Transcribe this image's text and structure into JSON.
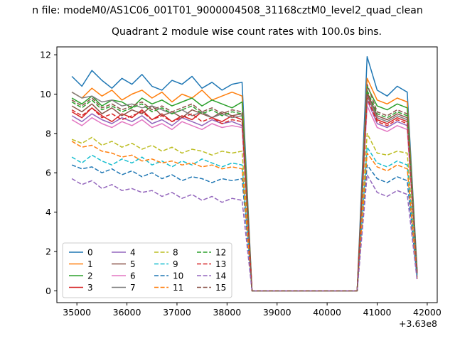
{
  "figure": {
    "suptitle": "n file: modeM0/AS1C06_001T01_9000004508_31168cztM0_level2_quad_clean",
    "title": "Quadrant 2 module wise count rates with 100.0s bins."
  },
  "chart_data": {
    "type": "line",
    "title": "Quadrant 2 module wise count rates with 100.0s bins.",
    "xlabel": "",
    "ylabel": "",
    "xlim": [
      34600,
      42200
    ],
    "ylim": [
      -0.6,
      12.4
    ],
    "x_ticks": [
      35000,
      36000,
      37000,
      38000,
      39000,
      40000,
      41000,
      42000
    ],
    "y_ticks": [
      0,
      2,
      4,
      6,
      8,
      10,
      12
    ],
    "x_offset": "+3.63e8",
    "grid": false,
    "legend_position": "lower left",
    "legend_columns": 4,
    "x": [
      34900,
      35100,
      35300,
      35500,
      35700,
      35900,
      36100,
      36300,
      36500,
      36700,
      36900,
      37100,
      37300,
      37500,
      37700,
      37900,
      38100,
      38300,
      38500,
      38700,
      38900,
      39100,
      39300,
      39500,
      39700,
      39900,
      40100,
      40300,
      40500,
      40600,
      40800,
      41000,
      41200,
      41400,
      41600,
      41800
    ],
    "series": [
      {
        "name": "0",
        "color": "#1f77b4",
        "dash": "solid",
        "values": [
          10.9,
          10.4,
          11.2,
          10.7,
          10.3,
          10.8,
          10.5,
          11.0,
          10.4,
          10.2,
          10.7,
          10.5,
          10.9,
          10.3,
          10.6,
          10.2,
          10.5,
          10.6,
          0,
          0,
          0,
          0,
          0,
          0,
          0,
          0,
          0,
          0,
          0,
          0,
          11.9,
          10.2,
          9.9,
          10.4,
          10.1,
          1.0
        ]
      },
      {
        "name": "1",
        "color": "#ff7f0e",
        "dash": "solid",
        "values": [
          10.1,
          9.8,
          10.3,
          9.9,
          10.2,
          9.7,
          10.0,
          10.2,
          9.8,
          10.1,
          9.6,
          10.0,
          9.8,
          10.2,
          9.7,
          9.9,
          10.1,
          9.9,
          0,
          0,
          0,
          0,
          0,
          0,
          0,
          0,
          0,
          0,
          0,
          0,
          10.8,
          9.7,
          9.5,
          9.8,
          9.6,
          0.9
        ]
      },
      {
        "name": "2",
        "color": "#2ca02c",
        "dash": "solid",
        "values": [
          9.8,
          9.5,
          9.9,
          9.4,
          9.7,
          9.6,
          9.3,
          9.8,
          9.5,
          9.7,
          9.4,
          9.6,
          9.8,
          9.4,
          9.7,
          9.5,
          9.3,
          9.6,
          0,
          0,
          0,
          0,
          0,
          0,
          0,
          0,
          0,
          0,
          0,
          0,
          10.4,
          9.4,
          9.2,
          9.5,
          9.3,
          0.9
        ]
      },
      {
        "name": "3",
        "color": "#d62728",
        "dash": "solid",
        "values": [
          9.1,
          8.8,
          9.3,
          8.9,
          8.6,
          9.0,
          8.8,
          9.2,
          8.7,
          9.0,
          8.6,
          8.9,
          8.7,
          9.1,
          8.8,
          8.6,
          8.9,
          8.7,
          0,
          0,
          0,
          0,
          0,
          0,
          0,
          0,
          0,
          0,
          0,
          0,
          10.0,
          8.7,
          8.5,
          8.8,
          8.6,
          0.9
        ]
      },
      {
        "name": "4",
        "color": "#9467bd",
        "dash": "solid",
        "values": [
          8.9,
          8.6,
          9.0,
          8.7,
          8.5,
          8.8,
          8.6,
          8.9,
          8.5,
          8.7,
          8.4,
          8.8,
          8.6,
          8.4,
          8.7,
          8.5,
          8.6,
          8.4,
          0,
          0,
          0,
          0,
          0,
          0,
          0,
          0,
          0,
          0,
          0,
          0,
          9.7,
          8.5,
          8.3,
          8.6,
          8.4,
          0.8
        ]
      },
      {
        "name": "5",
        "color": "#8c564b",
        "dash": "solid",
        "values": [
          9.4,
          9.1,
          9.5,
          9.0,
          9.3,
          8.9,
          9.2,
          9.0,
          9.4,
          8.9,
          9.1,
          8.8,
          9.2,
          9.0,
          8.8,
          9.1,
          8.9,
          9.0,
          0,
          0,
          0,
          0,
          0,
          0,
          0,
          0,
          0,
          0,
          0,
          0,
          10.1,
          8.9,
          8.7,
          9.0,
          8.8,
          0.9
        ]
      },
      {
        "name": "6",
        "color": "#e377c2",
        "dash": "solid",
        "values": [
          8.7,
          8.4,
          8.8,
          8.5,
          8.3,
          8.6,
          8.4,
          8.7,
          8.3,
          8.5,
          8.2,
          8.6,
          8.4,
          8.2,
          8.5,
          8.3,
          8.4,
          8.3,
          0,
          0,
          0,
          0,
          0,
          0,
          0,
          0,
          0,
          0,
          0,
          0,
          9.4,
          8.3,
          8.1,
          8.4,
          8.2,
          0.8
        ]
      },
      {
        "name": "7",
        "color": "#7f7f7f",
        "dash": "solid",
        "values": [
          10.1,
          9.8,
          9.9,
          9.6,
          9.7,
          9.4,
          9.5,
          9.3,
          9.4,
          9.2,
          9.0,
          9.2,
          8.9,
          9.1,
          8.8,
          9.0,
          8.8,
          8.9,
          0,
          0,
          0,
          0,
          0,
          0,
          0,
          0,
          0,
          0,
          0,
          0,
          9.9,
          8.8,
          8.6,
          8.9,
          8.7,
          0.9
        ]
      },
      {
        "name": "8",
        "color": "#bcbd22",
        "dash": "dashed",
        "values": [
          7.7,
          7.5,
          7.8,
          7.4,
          7.6,
          7.3,
          7.5,
          7.2,
          7.4,
          7.1,
          7.3,
          7.0,
          7.2,
          7.1,
          6.9,
          7.1,
          7.0,
          7.1,
          0,
          0,
          0,
          0,
          0,
          0,
          0,
          0,
          0,
          0,
          0,
          0,
          8.0,
          7.0,
          6.9,
          7.1,
          7.0,
          0.7
        ]
      },
      {
        "name": "9",
        "color": "#17becf",
        "dash": "dashed",
        "values": [
          6.8,
          6.5,
          6.9,
          6.6,
          6.4,
          6.7,
          6.5,
          6.8,
          6.4,
          6.6,
          6.3,
          6.6,
          6.4,
          6.7,
          6.5,
          6.3,
          6.5,
          6.4,
          0,
          0,
          0,
          0,
          0,
          0,
          0,
          0,
          0,
          0,
          0,
          0,
          7.3,
          6.5,
          6.3,
          6.6,
          6.4,
          0.7
        ]
      },
      {
        "name": "10",
        "color": "#1f77b4",
        "dash": "dashed",
        "values": [
          6.4,
          6.2,
          6.3,
          6.0,
          6.2,
          5.9,
          6.1,
          5.8,
          6.0,
          5.7,
          5.9,
          5.6,
          5.8,
          5.7,
          5.5,
          5.7,
          5.6,
          5.7,
          0,
          0,
          0,
          0,
          0,
          0,
          0,
          0,
          0,
          0,
          0,
          0,
          6.4,
          5.7,
          5.5,
          5.8,
          5.6,
          0.6
        ]
      },
      {
        "name": "11",
        "color": "#ff7f0e",
        "dash": "dashed",
        "values": [
          7.6,
          7.3,
          7.4,
          7.1,
          7.0,
          6.8,
          6.9,
          6.6,
          6.7,
          6.5,
          6.6,
          6.4,
          6.5,
          6.3,
          6.4,
          6.2,
          6.3,
          6.2,
          0,
          0,
          0,
          0,
          0,
          0,
          0,
          0,
          0,
          0,
          0,
          0,
          7.0,
          6.3,
          6.1,
          6.4,
          6.2,
          0.6
        ]
      },
      {
        "name": "12",
        "color": "#2ca02c",
        "dash": "dashed",
        "values": [
          9.6,
          9.3,
          9.7,
          9.2,
          9.4,
          9.1,
          9.3,
          9.5,
          9.1,
          9.3,
          9.0,
          9.2,
          9.4,
          9.0,
          9.2,
          8.9,
          9.1,
          9.0,
          0,
          0,
          0,
          0,
          0,
          0,
          0,
          0,
          0,
          0,
          0,
          0,
          10.2,
          9.0,
          8.8,
          9.1,
          8.9,
          0.9
        ]
      },
      {
        "name": "13",
        "color": "#d62728",
        "dash": "dashed",
        "values": [
          9.2,
          8.9,
          9.3,
          8.8,
          9.0,
          8.7,
          8.9,
          9.1,
          8.7,
          8.9,
          8.6,
          8.8,
          9.0,
          8.6,
          8.8,
          8.5,
          8.7,
          8.6,
          0,
          0,
          0,
          0,
          0,
          0,
          0,
          0,
          0,
          0,
          0,
          0,
          9.8,
          8.6,
          8.4,
          8.7,
          8.5,
          0.9
        ]
      },
      {
        "name": "14",
        "color": "#9467bd",
        "dash": "dashed",
        "values": [
          5.7,
          5.4,
          5.6,
          5.2,
          5.4,
          5.1,
          5.2,
          5.0,
          5.1,
          4.8,
          5.0,
          4.7,
          4.9,
          4.6,
          4.8,
          4.5,
          4.7,
          4.6,
          0,
          0,
          0,
          0,
          0,
          0,
          0,
          0,
          0,
          0,
          0,
          0,
          5.9,
          5.0,
          4.8,
          5.1,
          4.9,
          0.5
        ]
      },
      {
        "name": "15",
        "color": "#8c564b",
        "dash": "dashed",
        "values": [
          9.7,
          9.4,
          9.8,
          9.3,
          9.5,
          9.2,
          9.4,
          9.6,
          9.2,
          9.4,
          9.1,
          9.3,
          9.5,
          9.1,
          9.3,
          9.0,
          9.2,
          9.1,
          0,
          0,
          0,
          0,
          0,
          0,
          0,
          0,
          0,
          0,
          0,
          0,
          10.5,
          9.1,
          8.9,
          9.2,
          9.0,
          0.9
        ]
      }
    ]
  }
}
